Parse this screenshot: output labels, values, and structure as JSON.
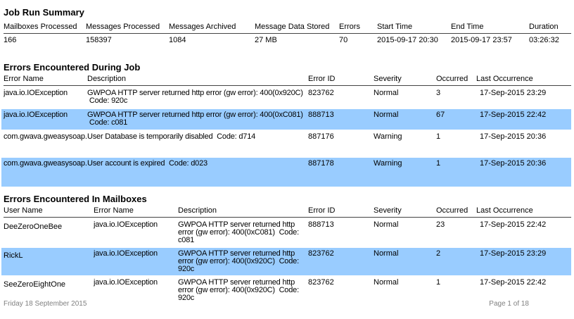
{
  "colors": {
    "highlight": "#99CCFF"
  },
  "job_run_summary": {
    "title": "Job Run Summary",
    "columns": [
      "Mailboxes Processed",
      "Messages Processed",
      "Messages Archived",
      "Message Data Stored",
      "Errors",
      "Start Time",
      "End Time",
      "Duration"
    ],
    "values": [
      "166",
      "158397",
      "1084",
      "27 MB",
      "70",
      "2015-09-17 20:30",
      "2015-09-17 23:57",
      "03:26:32"
    ]
  },
  "job_errors": {
    "title": "Errors Encountered During Job",
    "columns": [
      "Error Name",
      "Description",
      "Error ID",
      "Severity",
      "Occurred",
      "Last Occurrence"
    ],
    "rows": [
      {
        "error_name": "java.io.IOException",
        "description": "GWPOA HTTP server returned http error (gw error): 400(0x920C)\n Code: 920c",
        "error_id": "823762",
        "severity": "Normal",
        "occurred": "3",
        "last_occurrence": "17-Sep-2015 23:29"
      },
      {
        "error_name": "java.io.IOException",
        "description": "GWPOA HTTP server returned http error (gw error): 400(0xC081)\n Code: c081",
        "error_id": "888713",
        "severity": "Normal",
        "occurred": "67",
        "last_occurrence": "17-Sep-2015 22:42"
      },
      {
        "error_name": "com.gwava.gweasysoap.C",
        "description": "User Database is temporarily disabled  Code: d714",
        "error_id": "887176",
        "severity": "Warning",
        "occurred": "1",
        "last_occurrence": "17-Sep-2015 20:36"
      },
      {
        "error_name": "com.gwava.gweasysoap.C",
        "description": "User account is expired  Code: d023",
        "error_id": "887178",
        "severity": "Warning",
        "occurred": "1",
        "last_occurrence": "17-Sep-2015 20:36"
      }
    ]
  },
  "mailbox_errors": {
    "title": "Errors Encountered In Mailboxes",
    "columns": [
      "User Name",
      "Error Name",
      "Description",
      "Error ID",
      "Severity",
      "Occurred",
      "Last Occurrence"
    ],
    "rows": [
      {
        "user_name": "DeeZeroOneBee",
        "error_name": "java.io.IOException",
        "description": "GWPOA HTTP server returned http\nerror (gw error): 400(0xC081)  Code:\nc081",
        "error_id": "888713",
        "severity": "Normal",
        "occurred": "23",
        "last_occurrence": "17-Sep-2015 22:42"
      },
      {
        "user_name": "RickL",
        "error_name": "java.io.IOException",
        "description": "GWPOA HTTP server returned http\nerror (gw error): 400(0x920C)  Code:\n920c",
        "error_id": "823762",
        "severity": "Normal",
        "occurred": "2",
        "last_occurrence": "17-Sep-2015 23:29"
      },
      {
        "user_name": "SeeZeroEightOne",
        "error_name": "java.io.IOException",
        "description": "GWPOA HTTP server returned http\nerror (gw error): 400(0x920C)  Code:\n920c",
        "error_id": "823762",
        "severity": "Normal",
        "occurred": "1",
        "last_occurrence": "17-Sep-2015 22:42"
      }
    ]
  },
  "footer": {
    "date": "Friday 18 September 2015",
    "page": "Page 1 of 18"
  }
}
